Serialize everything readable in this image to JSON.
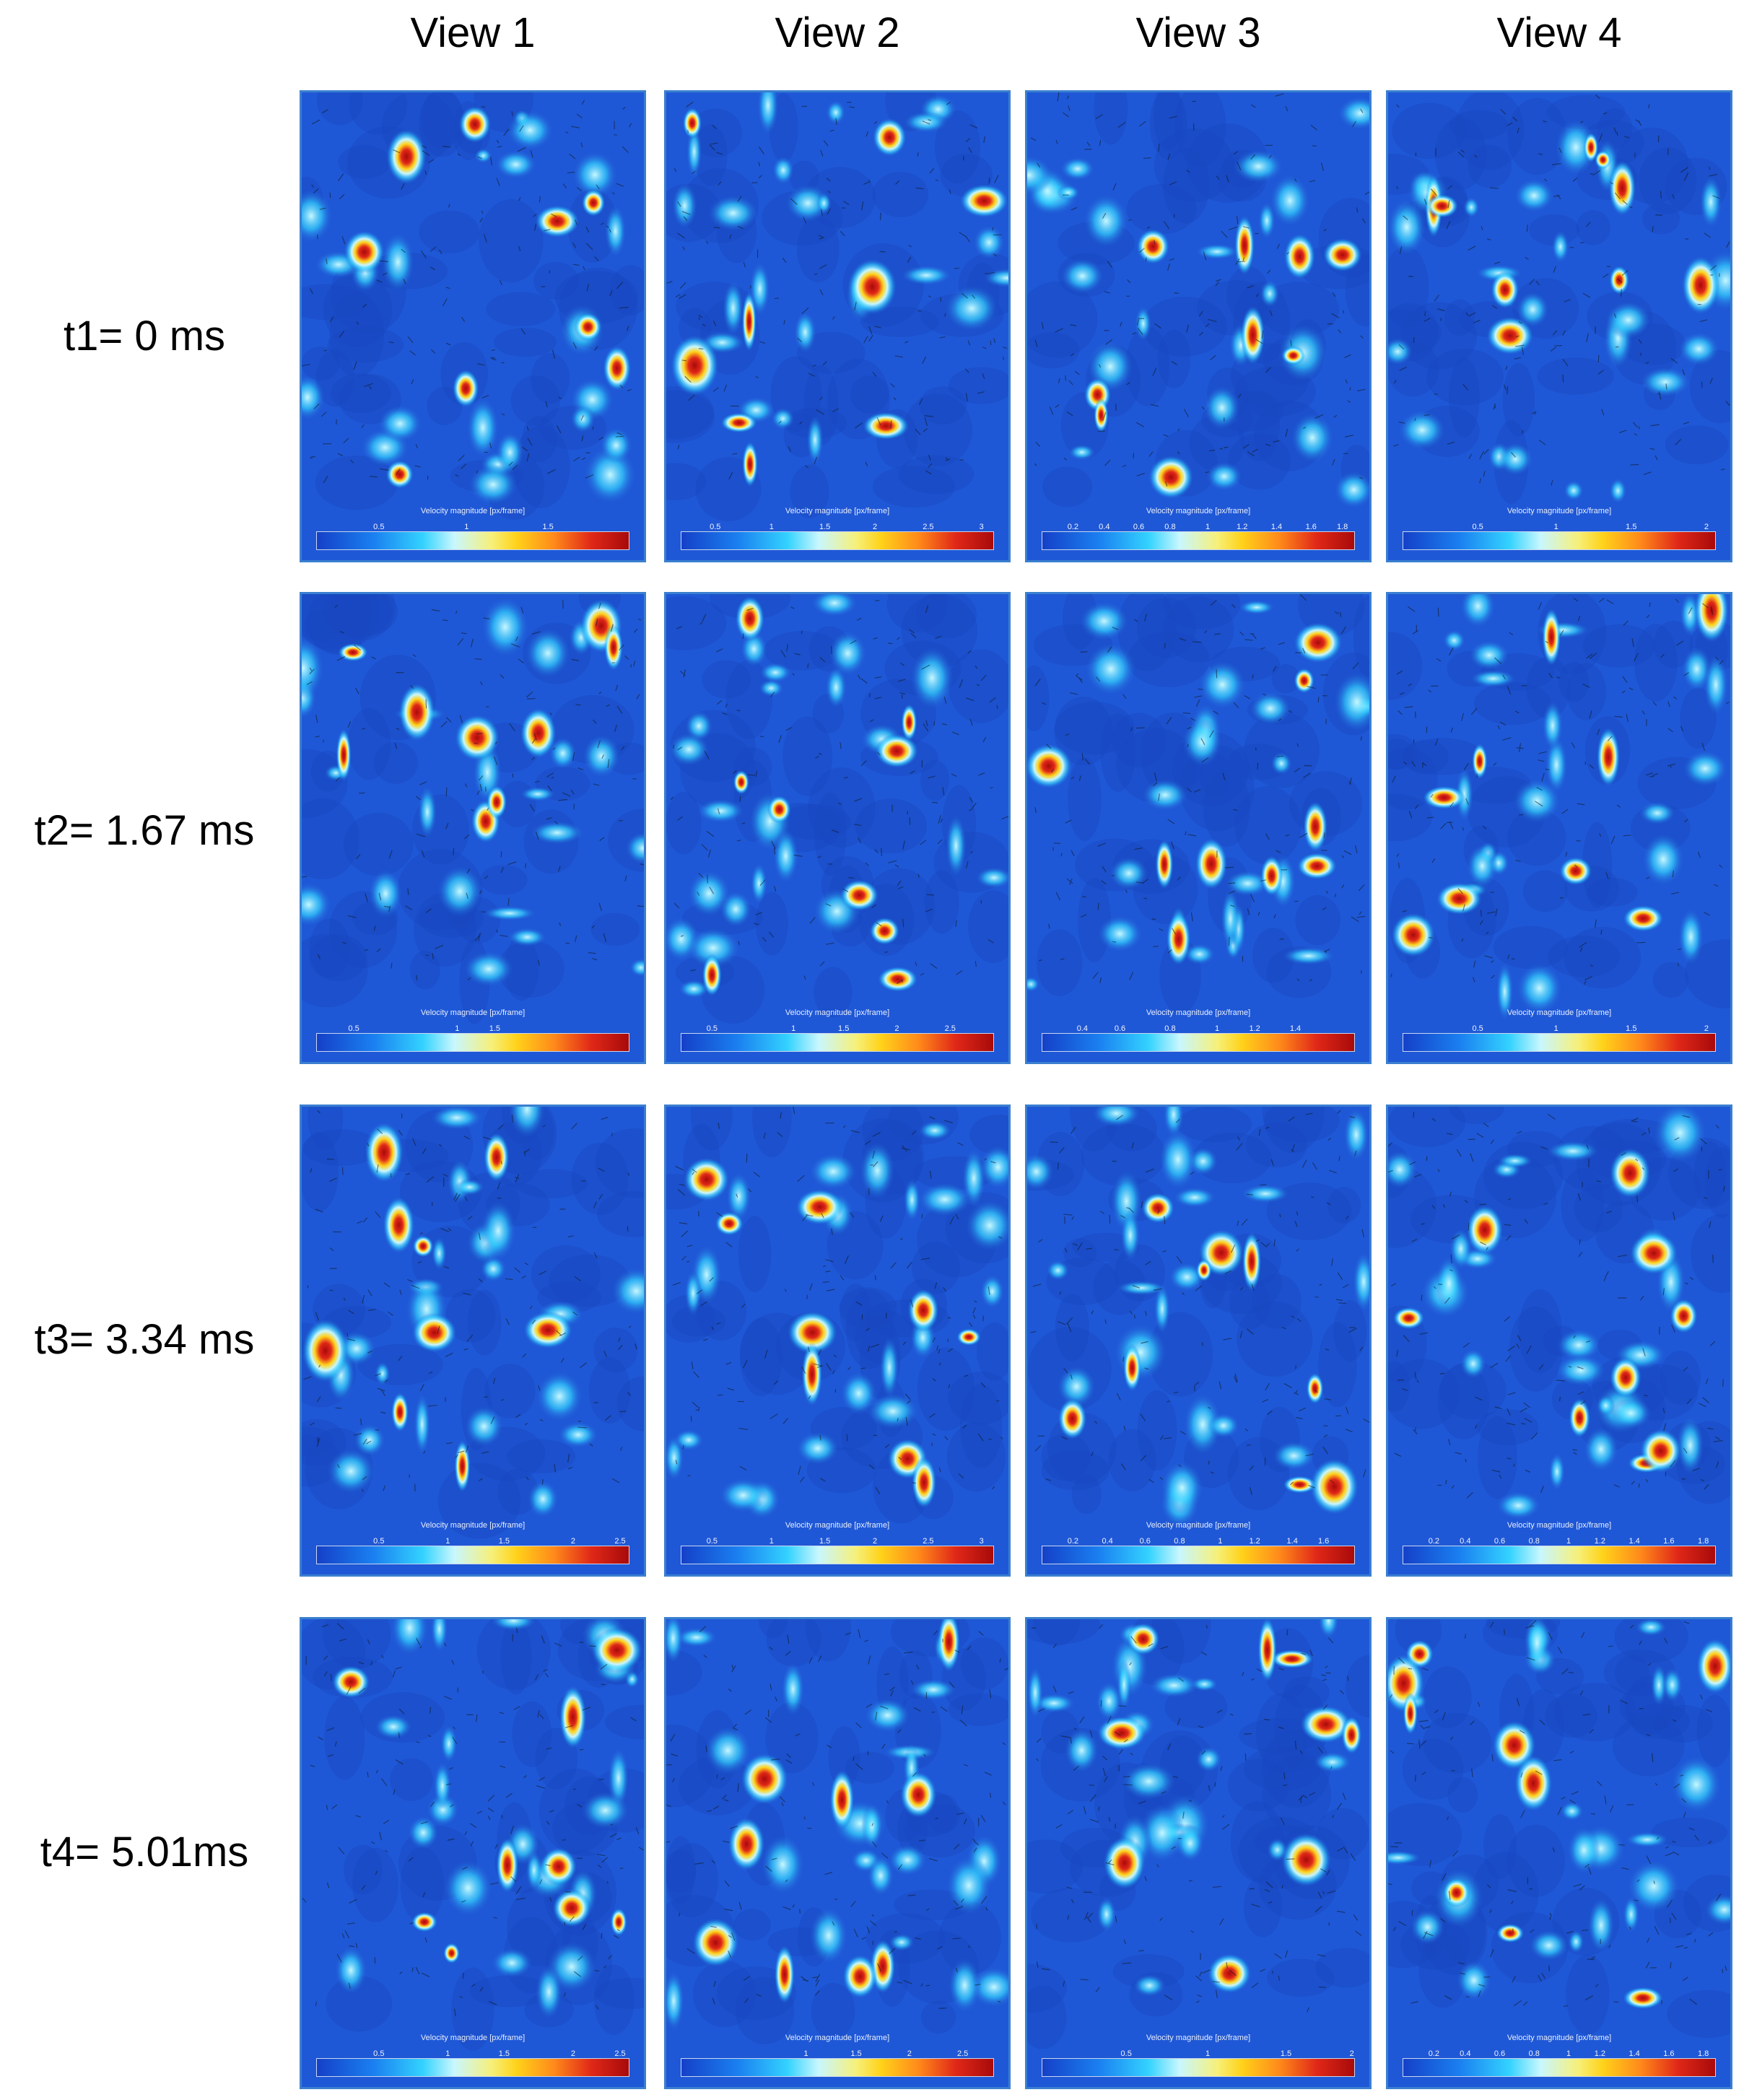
{
  "columns": [
    "View 1",
    "View 2",
    "View 3",
    "View 4"
  ],
  "rows": [
    {
      "label": "t1= 0 ms",
      "panels": [
        {
          "legend_title": "Velocity magnitude [px/frame]",
          "ticks": [
            "0.5",
            "1",
            "1.5"
          ],
          "tick_pos": [
            0.2,
            0.48,
            0.74
          ]
        },
        {
          "legend_title": "Velocity magnitude [px/frame]",
          "ticks": [
            "0.5",
            "1",
            "1.5",
            "2",
            "2.5",
            "3"
          ],
          "tick_pos": [
            0.11,
            0.29,
            0.46,
            0.62,
            0.79,
            0.96
          ]
        },
        {
          "legend_title": "Velocity magnitude [px/frame]",
          "ticks": [
            "0.2",
            "0.4",
            "0.6",
            "0.8",
            "1",
            "1.2",
            "1.4",
            "1.6",
            "1.8"
          ],
          "tick_pos": [
            0.1,
            0.2,
            0.31,
            0.41,
            0.53,
            0.64,
            0.75,
            0.86,
            0.96
          ]
        },
        {
          "legend_title": "Velocity magnitude [px/frame]",
          "ticks": [
            "0.5",
            "1",
            "1.5",
            "2"
          ],
          "tick_pos": [
            0.24,
            0.49,
            0.73,
            0.97
          ]
        }
      ]
    },
    {
      "label": "t2= 1.67 ms",
      "panels": [
        {
          "legend_title": "Velocity magnitude [px/frame]",
          "ticks": [
            "0.5",
            "1",
            "1.5"
          ],
          "tick_pos": [
            0.12,
            0.45,
            0.57
          ]
        },
        {
          "legend_title": "Velocity magnitude [px/frame]",
          "ticks": [
            "0.5",
            "1",
            "1.5",
            "2",
            "2.5"
          ],
          "tick_pos": [
            0.1,
            0.36,
            0.52,
            0.69,
            0.86
          ]
        },
        {
          "legend_title": "Velocity magnitude [px/frame]",
          "ticks": [
            "0.4",
            "0.6",
            "0.8",
            "1",
            "1.2",
            "1.4"
          ],
          "tick_pos": [
            0.13,
            0.25,
            0.41,
            0.56,
            0.68,
            0.81
          ]
        },
        {
          "legend_title": "Velocity magnitude [px/frame]",
          "ticks": [
            "0.5",
            "1",
            "1.5",
            "2"
          ],
          "tick_pos": [
            0.24,
            0.49,
            0.73,
            0.97
          ]
        }
      ]
    },
    {
      "label": "t3= 3.34 ms",
      "panels": [
        {
          "legend_title": "Velocity magnitude [px/frame]",
          "ticks": [
            "0.5",
            "1",
            "1.5",
            "2",
            "2.5"
          ],
          "tick_pos": [
            0.2,
            0.42,
            0.6,
            0.82,
            0.97
          ]
        },
        {
          "legend_title": "Velocity magnitude [px/frame]",
          "ticks": [
            "0.5",
            "1",
            "1.5",
            "2",
            "2.5",
            "3"
          ],
          "tick_pos": [
            0.1,
            0.29,
            0.46,
            0.62,
            0.79,
            0.96
          ]
        },
        {
          "legend_title": "Velocity magnitude [px/frame]",
          "ticks": [
            "0.2",
            "0.4",
            "0.6",
            "0.8",
            "1",
            "1.2",
            "1.4",
            "1.6"
          ],
          "tick_pos": [
            0.1,
            0.21,
            0.33,
            0.44,
            0.57,
            0.68,
            0.8,
            0.9
          ]
        },
        {
          "legend_title": "Velocity magnitude [px/frame]",
          "ticks": [
            "0.2",
            "0.4",
            "0.6",
            "0.8",
            "1",
            "1.2",
            "1.4",
            "1.6",
            "1.8"
          ],
          "tick_pos": [
            0.1,
            0.2,
            0.31,
            0.42,
            0.53,
            0.63,
            0.74,
            0.85,
            0.96
          ]
        }
      ]
    },
    {
      "label": "t4= 5.01ms",
      "panels": [
        {
          "legend_title": "Velocity magnitude [px/frame]",
          "ticks": [
            "0.5",
            "1",
            "1.5",
            "2",
            "2.5"
          ],
          "tick_pos": [
            0.2,
            0.42,
            0.6,
            0.82,
            0.97
          ]
        },
        {
          "legend_title": "Velocity magnitude [px/frame]",
          "ticks": [
            "1",
            "1.5",
            "2",
            "2.5"
          ],
          "tick_pos": [
            0.4,
            0.56,
            0.73,
            0.9
          ]
        },
        {
          "legend_title": "Velocity magnitude [px/frame]",
          "ticks": [
            "0.5",
            "1",
            "1.5",
            "2"
          ],
          "tick_pos": [
            0.27,
            0.53,
            0.78,
            0.99
          ]
        },
        {
          "legend_title": "Velocity magnitude [px/frame]",
          "ticks": [
            "0.2",
            "0.4",
            "0.6",
            "0.8",
            "1",
            "1.2",
            "1.4",
            "1.6",
            "1.8"
          ],
          "tick_pos": [
            0.1,
            0.2,
            0.31,
            0.42,
            0.53,
            0.63,
            0.74,
            0.85,
            0.96
          ]
        }
      ]
    }
  ],
  "colors": {
    "background": "#1f58d6",
    "colormap": [
      "#1540c8",
      "#1a7ff0",
      "#33d2ff",
      "#c8f7ff",
      "#f6f07a",
      "#ffd21a",
      "#ff8a1a",
      "#e02818",
      "#a80a0a"
    ]
  }
}
